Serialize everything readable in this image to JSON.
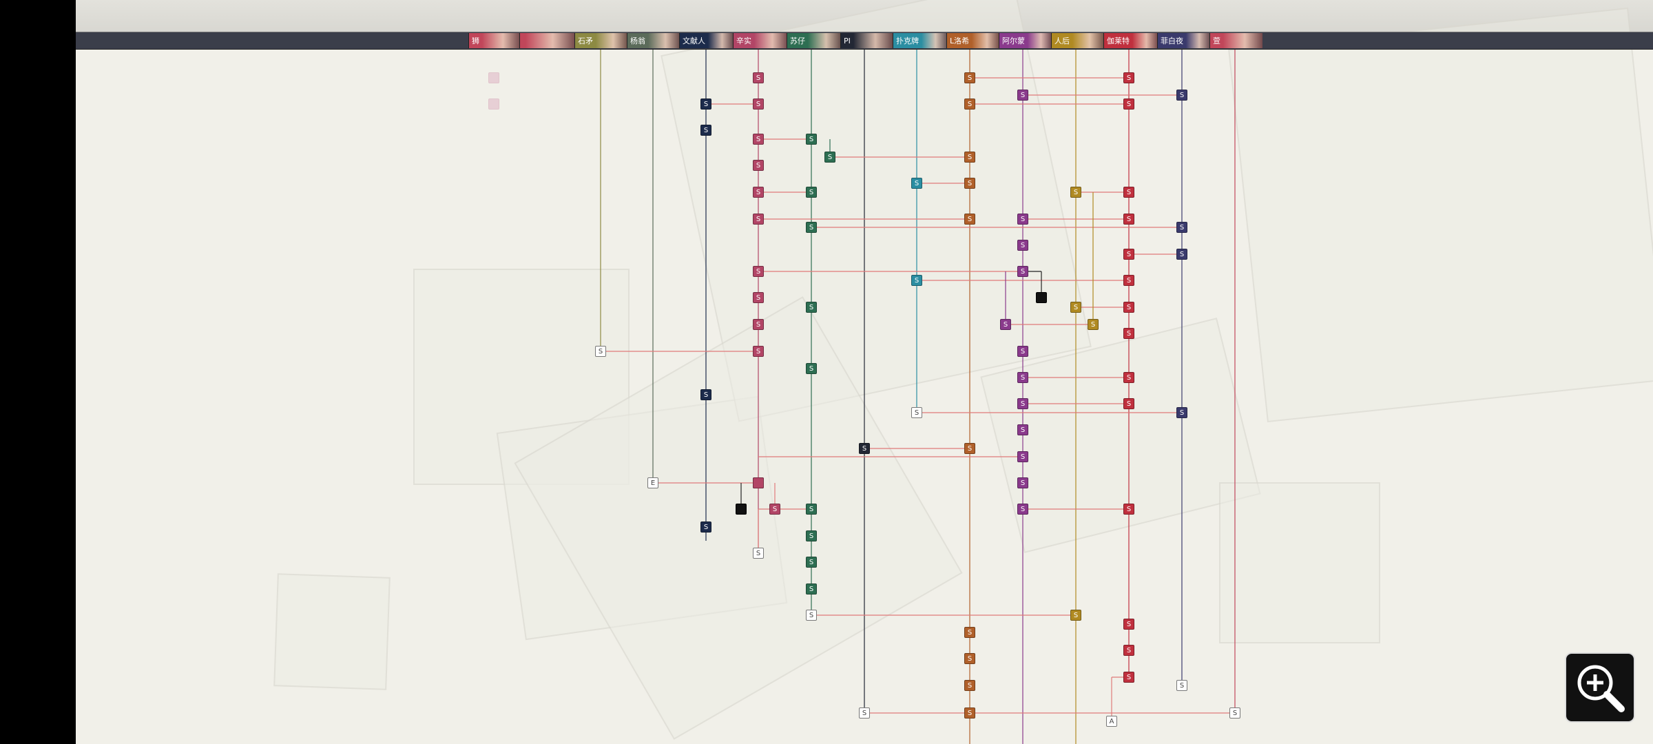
{
  "characters": [
    {
      "name": "狮",
      "color": "#c1465a"
    },
    {
      "name": "",
      "color": "#c1465a"
    },
    {
      "name": "石矛",
      "color": "#8d8a43"
    },
    {
      "name": "杨翁",
      "color": "#5b6b5a"
    },
    {
      "name": "文献人",
      "color": "#1c2b4b"
    },
    {
      "name": "辛实",
      "color": "#b24566"
    },
    {
      "name": "苏仔",
      "color": "#2d6e52"
    },
    {
      "name": "PI",
      "color": "#222734"
    },
    {
      "name": "扑克牌",
      "color": "#2b8ea2"
    },
    {
      "name": "L洛希",
      "color": "#b0602a"
    },
    {
      "name": "阿尔蒙",
      "color": "#8a3a8c"
    },
    {
      "name": "人后",
      "color": "#b08a22"
    },
    {
      "name": "伽莱特",
      "color": "#c0303e"
    },
    {
      "name": "菲白夜",
      "color": "#3a3a6c"
    },
    {
      "name": "萱",
      "color": "#c1465a"
    }
  ],
  "nodes": {
    "scene_label": "S",
    "end_label": "E",
    "alt_label": "A"
  },
  "zoom_icon": "zoom-in-icon"
}
